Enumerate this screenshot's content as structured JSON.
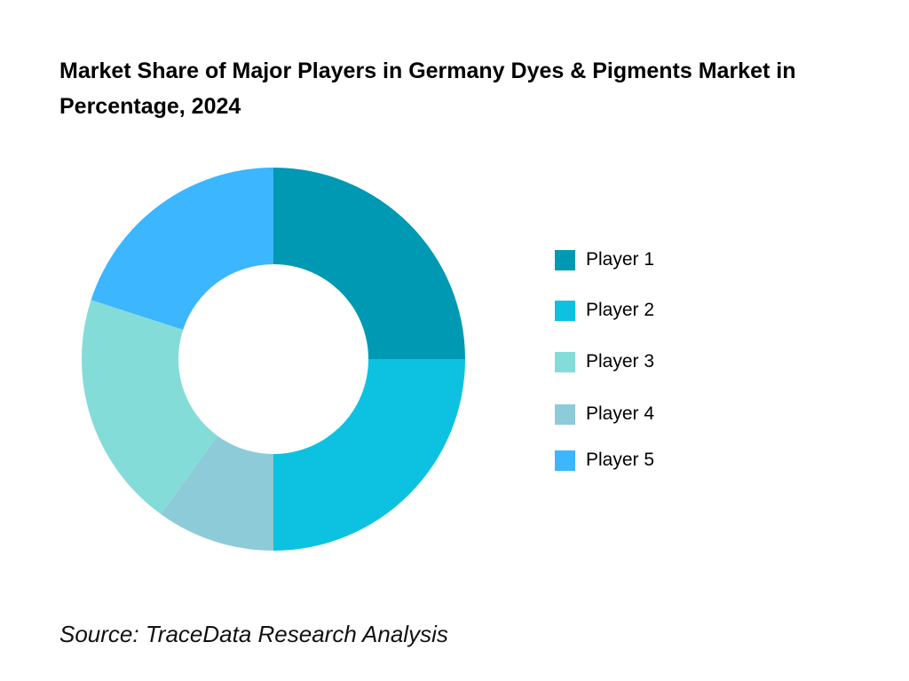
{
  "chart_data": {
    "type": "pie",
    "variant": "donut",
    "title": "Market Share of Major Players in Germany Dyes & Pigments Market in Percentage, 2024",
    "categories": [
      "Player 1",
      "Player 2",
      "Player 3",
      "Player 4",
      "Player 5"
    ],
    "values": [
      25,
      25,
      20,
      10,
      20
    ],
    "draw_order": [
      0,
      1,
      3,
      2,
      4
    ],
    "colors": [
      "#0099B4",
      "#0DC2E0",
      "#84DCD9",
      "#8DCBD8",
      "#3BB6FF"
    ],
    "legend_position": "right",
    "source": "Source: TraceData Research Analysis"
  }
}
